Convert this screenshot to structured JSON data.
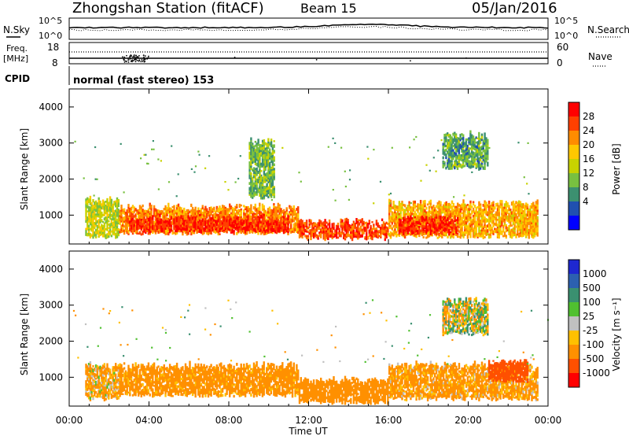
{
  "header": {
    "station": "Zhongshan Station (fitACF)",
    "beam": "Beam 15",
    "date": "05/Jan/2016"
  },
  "top_panels": {
    "nsky_label": "N.Sky",
    "nsearch_label": "N.Search",
    "left_ticks": [
      "10^5",
      "10^0"
    ],
    "right_ticks": [
      "10^5",
      "10^0"
    ],
    "freq_label_line1": "Freq.",
    "freq_label_line2": "[MHz]",
    "freq_ticks": [
      "18",
      "8"
    ],
    "nave_label": "Nave",
    "nave_ticks": [
      "60",
      "0"
    ],
    "cpid_label": "CPID",
    "cpid_text": "normal (fast stereo) 153"
  },
  "colorbars": {
    "power_title": "Power [dB]",
    "power_ticks": [
      "28",
      "24",
      "20",
      "16",
      "12",
      "8",
      "4"
    ],
    "power_colors": [
      "#ff0000",
      "#ff4000",
      "#ff8c00",
      "#ffc800",
      "#c8d200",
      "#78c040",
      "#3c9070",
      "#2050b0",
      "#0000ff"
    ],
    "velocity_title": "Velocity [m s⁻¹]",
    "velocity_ticks": [
      "1000",
      "500",
      "100",
      "25",
      "-25",
      "-100",
      "-500",
      "-1000"
    ],
    "velocity_colors": [
      "#1e28d0",
      "#2c60b0",
      "#3a9070",
      "#50c030",
      "#c0c0c0",
      "#ffc000",
      "#ff9000",
      "#ff5000",
      "#ff0000"
    ]
  },
  "chart_data": [
    {
      "type": "heatmap",
      "panel": "power",
      "ylabel": "Slant Range [km]",
      "ylim": [
        200,
        4500
      ],
      "yticks": [
        1000,
        2000,
        3000,
        4000
      ],
      "xlim": [
        0,
        24
      ],
      "colorbar": "Power [dB]",
      "regions": [
        {
          "t0": 0.8,
          "t1": 2.5,
          "r0": 400,
          "r1": 1400,
          "power": 12
        },
        {
          "t0": 2.5,
          "t1": 11.5,
          "r0": 500,
          "r1": 1200,
          "power": 20
        },
        {
          "t0": 3.0,
          "t1": 11.0,
          "r0": 550,
          "r1": 900,
          "power": 26
        },
        {
          "t0": 11.5,
          "t1": 16.0,
          "r0": 350,
          "r1": 800,
          "power": 24
        },
        {
          "t0": 16.0,
          "t1": 23.5,
          "r0": 400,
          "r1": 1300,
          "power": 18
        },
        {
          "t0": 16.5,
          "t1": 19.5,
          "r0": 500,
          "r1": 900,
          "power": 26
        },
        {
          "t0": 18.7,
          "t1": 21.0,
          "r0": 2300,
          "r1": 3200,
          "power": 6
        },
        {
          "t0": 9.0,
          "t1": 10.3,
          "r0": 1500,
          "r1": 3000,
          "power": 8
        }
      ]
    },
    {
      "type": "heatmap",
      "panel": "velocity",
      "ylabel": "Slant Range [km]",
      "xlabel": "Time UT",
      "ylim": [
        200,
        4500
      ],
      "yticks": [
        1000,
        2000,
        3000,
        4000
      ],
      "xlim": [
        0,
        24
      ],
      "xticks": [
        "00:00",
        "04:00",
        "08:00",
        "12:00",
        "16:00",
        "20:00",
        "00:00"
      ],
      "colorbar": "Velocity [m s-1]",
      "regions": [
        {
          "t0": 0.8,
          "t1": 2.5,
          "r0": 400,
          "r1": 1300,
          "velocity": -150
        },
        {
          "t0": 2.5,
          "t1": 11.5,
          "r0": 500,
          "r1": 1300,
          "velocity": -250
        },
        {
          "t0": 11.5,
          "t1": 16.0,
          "r0": 300,
          "r1": 900,
          "velocity": -300
        },
        {
          "t0": 16.0,
          "t1": 23.5,
          "r0": 400,
          "r1": 1300,
          "velocity": -200
        },
        {
          "t0": 18.7,
          "t1": 21.0,
          "r0": 2200,
          "r1": 3100,
          "velocity": 0
        },
        {
          "t0": 21.0,
          "t1": 23.0,
          "r0": 900,
          "r1": 1400,
          "velocity": -800
        }
      ]
    }
  ]
}
